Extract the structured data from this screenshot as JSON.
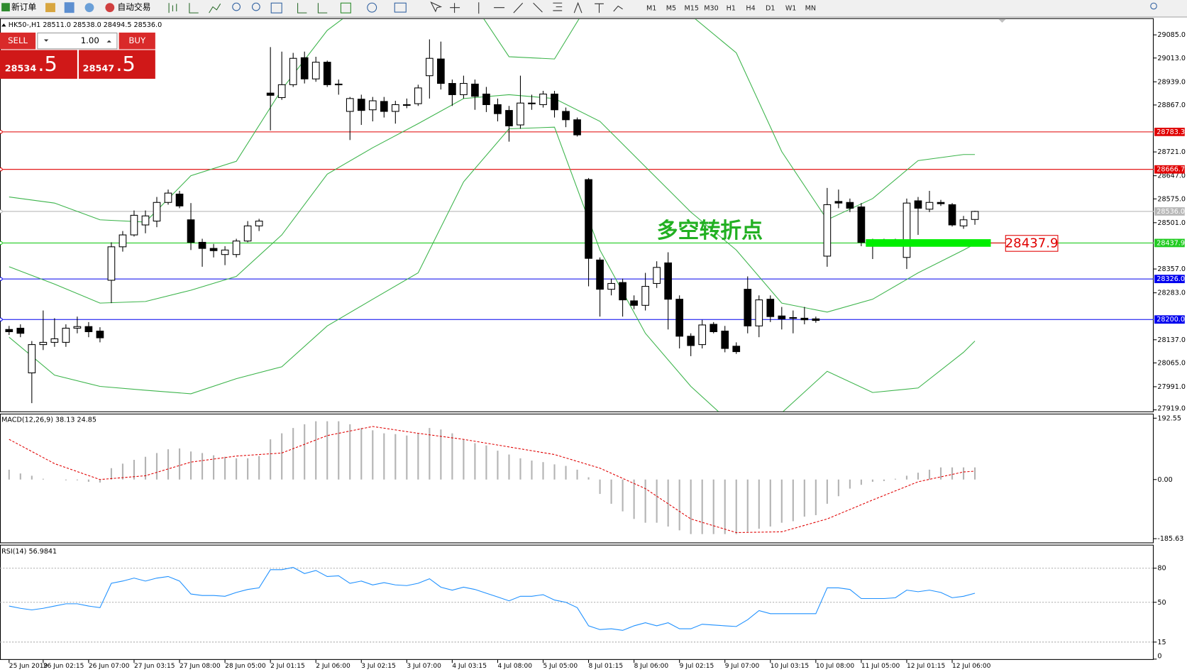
{
  "toolbar": {
    "new_order": "新订单",
    "auto_trading": "自动交易",
    "timeframes": [
      "M1",
      "M5",
      "M15",
      "M30",
      "H1",
      "H4",
      "D1",
      "W1",
      "MN"
    ]
  },
  "trade_panel": {
    "sell": "SELL",
    "buy": "BUY",
    "lots": "1.00",
    "bid_main": "28534",
    "bid_frac": ".5",
    "ask_main": "28547",
    "ask_frac": ".5"
  },
  "chart_data": [
    {
      "type": "candlestick",
      "title": "HK50-,H1  28511.0 28538.0 28494.5 28536.0",
      "categories": [
        "25 Jun 2019",
        null,
        null,
        "26 Jun 02:15",
        null,
        null,
        null,
        "26 Jun 07:00",
        null,
        null,
        null,
        "27 Jun 03:15",
        null,
        null,
        null,
        "27 Jun 08:00",
        null,
        null,
        null,
        "28 Jun 05:00",
        null,
        null,
        null,
        "2 Jul 01:15",
        null,
        null,
        null,
        "2 Jul 06:00",
        null,
        null,
        null,
        "3 Jul 02:15",
        null,
        null,
        null,
        "3 Jul 07:00",
        null,
        null,
        null,
        "4 Jul 03:15",
        null,
        null,
        null,
        "4 Jul 08:00",
        null,
        null,
        null,
        "5 Jul 05:00",
        null,
        null,
        null,
        "8 Jul 01:15",
        null,
        null,
        null,
        "8 Jul 06:00",
        null,
        null,
        null,
        "9 Jul 02:15",
        null,
        null,
        null,
        "9 Jul 07:00",
        null,
        null,
        null,
        "10 Jul 03:15",
        null,
        null,
        null,
        "10 Jul 08:00",
        null,
        null,
        null,
        "11 Jul 05:00",
        null,
        null,
        null,
        "12 Jul 01:15",
        null,
        null,
        null,
        "12 Jul 06:00",
        null,
        null
      ],
      "open": [
        28169,
        28173,
        28034,
        28122,
        28129,
        28129,
        28173,
        28178,
        28164,
        28322,
        28426,
        28463,
        28494,
        28506,
        28564,
        28590,
        28510,
        28440,
        28421,
        28402,
        28402,
        28444,
        28491,
        28904,
        28890,
        28930,
        29014,
        28948,
        29000,
        28932,
        28847,
        28885,
        28852,
        28878,
        28847,
        28868,
        28871,
        28958,
        29010,
        28934,
        28899,
        28932,
        28901,
        28868,
        28850,
        28805,
        28873,
        28868,
        28901,
        28847,
        28821,
        28635,
        28385,
        28294,
        28315,
        28258,
        28244,
        28312,
        28376,
        28263,
        28148,
        28122,
        28185,
        28164,
        28117,
        28294,
        28180,
        28263,
        28211,
        28206,
        28204,
        28202,
        28397,
        28567,
        28564,
        28550,
        28440,
        28440,
        28440,
        28393,
        28569,
        28543,
        28564,
        28557,
        28491,
        28511
      ],
      "high": [
        28180,
        28185,
        28133,
        28228,
        28204,
        28185,
        28209,
        28192,
        28176,
        28440,
        28475,
        28539,
        28539,
        28581,
        28604,
        28600,
        28562,
        28451,
        28435,
        28428,
        28451,
        28506,
        28513,
        29047,
        29033,
        29029,
        29033,
        29017,
        29005,
        28946,
        28892,
        28899,
        28892,
        28892,
        28880,
        28887,
        28930,
        29071,
        29064,
        28946,
        28958,
        28946,
        28923,
        28887,
        28864,
        28958,
        28899,
        28911,
        28911,
        28859,
        28828,
        28640,
        28393,
        28327,
        28327,
        28275,
        28345,
        28381,
        28409,
        28275,
        28157,
        28199,
        28192,
        28180,
        28129,
        28334,
        28275,
        28275,
        28239,
        28228,
        28239,
        28209,
        28609,
        28604,
        28576,
        28562,
        28451,
        28451,
        28451,
        28576,
        28581,
        28600,
        28572,
        28562,
        28522,
        28538
      ],
      "low": [
        28152,
        28145,
        27940,
        28105,
        28115,
        28115,
        28157,
        28145,
        28129,
        28251,
        28411,
        28458,
        28468,
        28487,
        28557,
        28546,
        28416,
        28364,
        28393,
        28369,
        28393,
        28440,
        28475,
        28788,
        28883,
        28923,
        28934,
        28939,
        28923,
        28899,
        28758,
        28805,
        28816,
        28828,
        28809,
        28857,
        28864,
        28887,
        28915,
        28864,
        28887,
        28852,
        28845,
        28816,
        28753,
        28793,
        28852,
        28859,
        28828,
        28798,
        28769,
        28303,
        28209,
        28275,
        28209,
        28232,
        28228,
        28298,
        28169,
        28110,
        28086,
        28110,
        28157,
        28098,
        28093,
        28157,
        28145,
        28192,
        28169,
        28157,
        28185,
        28190,
        28364,
        28546,
        28534,
        28428,
        28388,
        28428,
        28428,
        28357,
        28463,
        28534,
        28553,
        28489,
        28482,
        28494.5
      ],
      "close": [
        28162,
        28157,
        28122,
        28129,
        28140,
        28173,
        28178,
        28162,
        28143,
        28426,
        28463,
        28524,
        28522,
        28564,
        28593,
        28553,
        28440,
        28421,
        28414,
        28416,
        28444,
        28491,
        28506,
        28897,
        28930,
        29012,
        28948,
        29000,
        28930,
        28930,
        28887,
        28850,
        28880,
        28847,
        28868,
        28866,
        28920,
        29012,
        28934,
        28899,
        28934,
        28894,
        28868,
        28840,
        28802,
        28873,
        28871,
        28901,
        28852,
        28821,
        28774,
        28390,
        28294,
        28312,
        28261,
        28244,
        28303,
        28362,
        28263,
        28148,
        28119,
        28183,
        28162,
        28110,
        28100,
        28180,
        28261,
        28209,
        28202,
        28204,
        28199,
        28197,
        28557,
        28562,
        28546,
        28440,
        28435,
        28435,
        28435,
        28562,
        28546,
        28564,
        28560,
        28494,
        28510,
        28536
      ],
      "bands": [
        {
          "color": "#3cb44b",
          "x": [
            0,
            4,
            8,
            12,
            16,
            20,
            24,
            28,
            32,
            36,
            40,
            44,
            48,
            52,
            56,
            60,
            64,
            68,
            72,
            76,
            80,
            84,
            85
          ],
          "values": [
            28581,
            28562,
            28510,
            28503,
            28647,
            28692,
            28915,
            29099,
            29205,
            29241,
            29229,
            29017,
            29010,
            29241,
            29288,
            29146,
            29029,
            28722,
            28510,
            28576,
            28694,
            28713,
            28713
          ]
        },
        {
          "color": "#3cb44b",
          "x": [
            0,
            4,
            8,
            12,
            16,
            20,
            24,
            28,
            32,
            36,
            40,
            44,
            48,
            52,
            56,
            60,
            64,
            68,
            72,
            76,
            80,
            84,
            85
          ],
          "values": [
            28364,
            28310,
            28251,
            28256,
            28291,
            28334,
            28463,
            28652,
            28734,
            28809,
            28887,
            28899,
            28887,
            28816,
            28675,
            28534,
            28416,
            28251,
            28223,
            28263,
            28345,
            28416,
            28435
          ]
        },
        {
          "color": "#3cb44b",
          "x": [
            0,
            4,
            8,
            12,
            16,
            20,
            24,
            28,
            32,
            36,
            40,
            44,
            48,
            52,
            56,
            60,
            64,
            68,
            72,
            76,
            80,
            84,
            85
          ],
          "values": [
            28145,
            28027,
            27992,
            27980,
            27969,
            28016,
            28053,
            28180,
            28263,
            28345,
            28628,
            28793,
            28798,
            28416,
            28157,
            27992,
            27863,
            27910,
            28039,
            27973,
            27987,
            28098,
            28133
          ]
        }
      ],
      "hlines": [
        {
          "value": 28783.3,
          "label": "28783.3",
          "color": "#e00000"
        },
        {
          "value": 28666.7,
          "label": "28666.7",
          "color": "#e00000"
        },
        {
          "value": 28536,
          "label": "28536.0",
          "color": "#b8b8b8"
        },
        {
          "value": 28437.9,
          "label": "28437.9",
          "color": "#22cc22"
        },
        {
          "value": 28326,
          "label": "28326.0",
          "color": "#0000ee"
        },
        {
          "value": 28200,
          "label": "28200.0",
          "color": "#0000ee"
        }
      ],
      "annotation": "多空转折点",
      "callout": {
        "value": 28437.9,
        "label": "28437.9"
      },
      "ylim": [
        27914.3,
        29134.5
      ],
      "yticks": [
        {
          "value": 29085,
          "label": "29085.0"
        },
        {
          "value": 29013,
          "label": "29013.0"
        },
        {
          "value": 28939,
          "label": "28939.0"
        },
        {
          "value": 28867,
          "label": "28867.0"
        },
        {
          "value": 28721,
          "label": "28721.0"
        },
        {
          "value": 28647,
          "label": "28647.0"
        },
        {
          "value": 28575,
          "label": "28575.0"
        },
        {
          "value": 28501,
          "label": "28501.0"
        },
        {
          "value": 28357,
          "label": "28357.0"
        },
        {
          "value": 28283,
          "label": "28283.0"
        },
        {
          "value": 28137,
          "label": "28137.0"
        },
        {
          "value": 28065,
          "label": "28065.0"
        },
        {
          "value": 27991,
          "label": "27991.0"
        },
        {
          "value": 27919,
          "label": "27919.0"
        }
      ]
    },
    {
      "type": "macd",
      "title": "MACD(12,26,9) 38.13 24.85",
      "color": "#b4b4b4",
      "values": [
        30.9,
        19,
        11.9,
        2.4,
        0,
        -2.4,
        -2.4,
        -7.1,
        -9.5,
        35.7,
        49.9,
        61.8,
        71.4,
        83.2,
        95.1,
        97.5,
        88,
        83.2,
        76.1,
        71.4,
        66.6,
        66.6,
        73.7,
        126.1,
        145.1,
        161.7,
        173.6,
        183.1,
        183.1,
        183.1,
        173.6,
        161.7,
        154.6,
        145.1,
        142.7,
        138,
        145.1,
        161.7,
        157,
        145.1,
        126.1,
        114.2,
        107,
        90.4,
        78.5,
        66.6,
        59.5,
        54.7,
        47.6,
        42.8,
        30.9,
        7.1,
        -45.2,
        -76.1,
        -99.9,
        -123.7,
        -135.6,
        -135.6,
        -147.5,
        -159.4,
        -171.3,
        -171.3,
        -171.3,
        -171.3,
        -171.3,
        -164.1,
        -154.6,
        -147.5,
        -135.6,
        -130.8,
        -116.5,
        -111.8,
        -76.1,
        -52.3,
        -28.5,
        -16.6,
        -7.1,
        -4.8,
        2.4,
        11.9,
        21.4,
        30.9,
        38.1,
        38.1,
        38.1,
        38.1
      ],
      "signal": {
        "color": "#e00000",
        "x": [
          0,
          4,
          8,
          12,
          16,
          20,
          24,
          28,
          32,
          36,
          40,
          44,
          48,
          52,
          56,
          60,
          64,
          68,
          72,
          76,
          80,
          84,
          85
        ],
        "values": [
          126.1,
          49.9,
          0,
          11.9,
          54.7,
          73.7,
          83.2,
          138,
          166.5,
          145.1,
          126.1,
          102.3,
          78.5,
          35.7,
          -28.5,
          -123.7,
          -166.5,
          -164.1,
          -123.7,
          -64.2,
          -7.1,
          23.8,
          26.2
        ]
      },
      "ylim": [
        -197.5,
        204.4
      ],
      "yticks": [
        192.55,
        {
          "value": 0,
          "label": "0.00"
        },
        -185.63
      ]
    },
    {
      "type": "line",
      "title": "RSI(14) 56.9841",
      "color": "#1e90ff",
      "values": [
        46.7,
        44.7,
        43.3,
        44.7,
        46.7,
        48.7,
        48.7,
        46.7,
        45.3,
        66.7,
        68.7,
        71.3,
        68.7,
        71.3,
        72.7,
        68.7,
        57.3,
        56,
        56,
        55.3,
        58.7,
        61.3,
        62.7,
        78.7,
        78.7,
        80.7,
        75.3,
        78,
        72.7,
        73.3,
        66.7,
        68.7,
        65.3,
        67.3,
        65.3,
        64.7,
        66.7,
        70.7,
        63.3,
        60.7,
        63.3,
        61.3,
        58,
        54.7,
        51.3,
        55.3,
        55.3,
        56.7,
        52,
        50,
        45.3,
        29.3,
        26,
        26.7,
        25.3,
        29.3,
        32,
        29.3,
        32,
        26.7,
        26.7,
        30.7,
        30,
        29.3,
        28.7,
        34.7,
        42.7,
        40,
        40,
        40,
        40,
        40,
        62.7,
        62.7,
        61.3,
        53.3,
        53.3,
        53.3,
        54,
        60.7,
        59.3,
        60.7,
        58.7,
        54,
        55.3,
        58
      ],
      "levels": [
        15,
        50,
        80
      ],
      "ylim": [
        0,
        100
      ],
      "yticks": [
        0,
        15,
        50,
        80
      ]
    }
  ]
}
